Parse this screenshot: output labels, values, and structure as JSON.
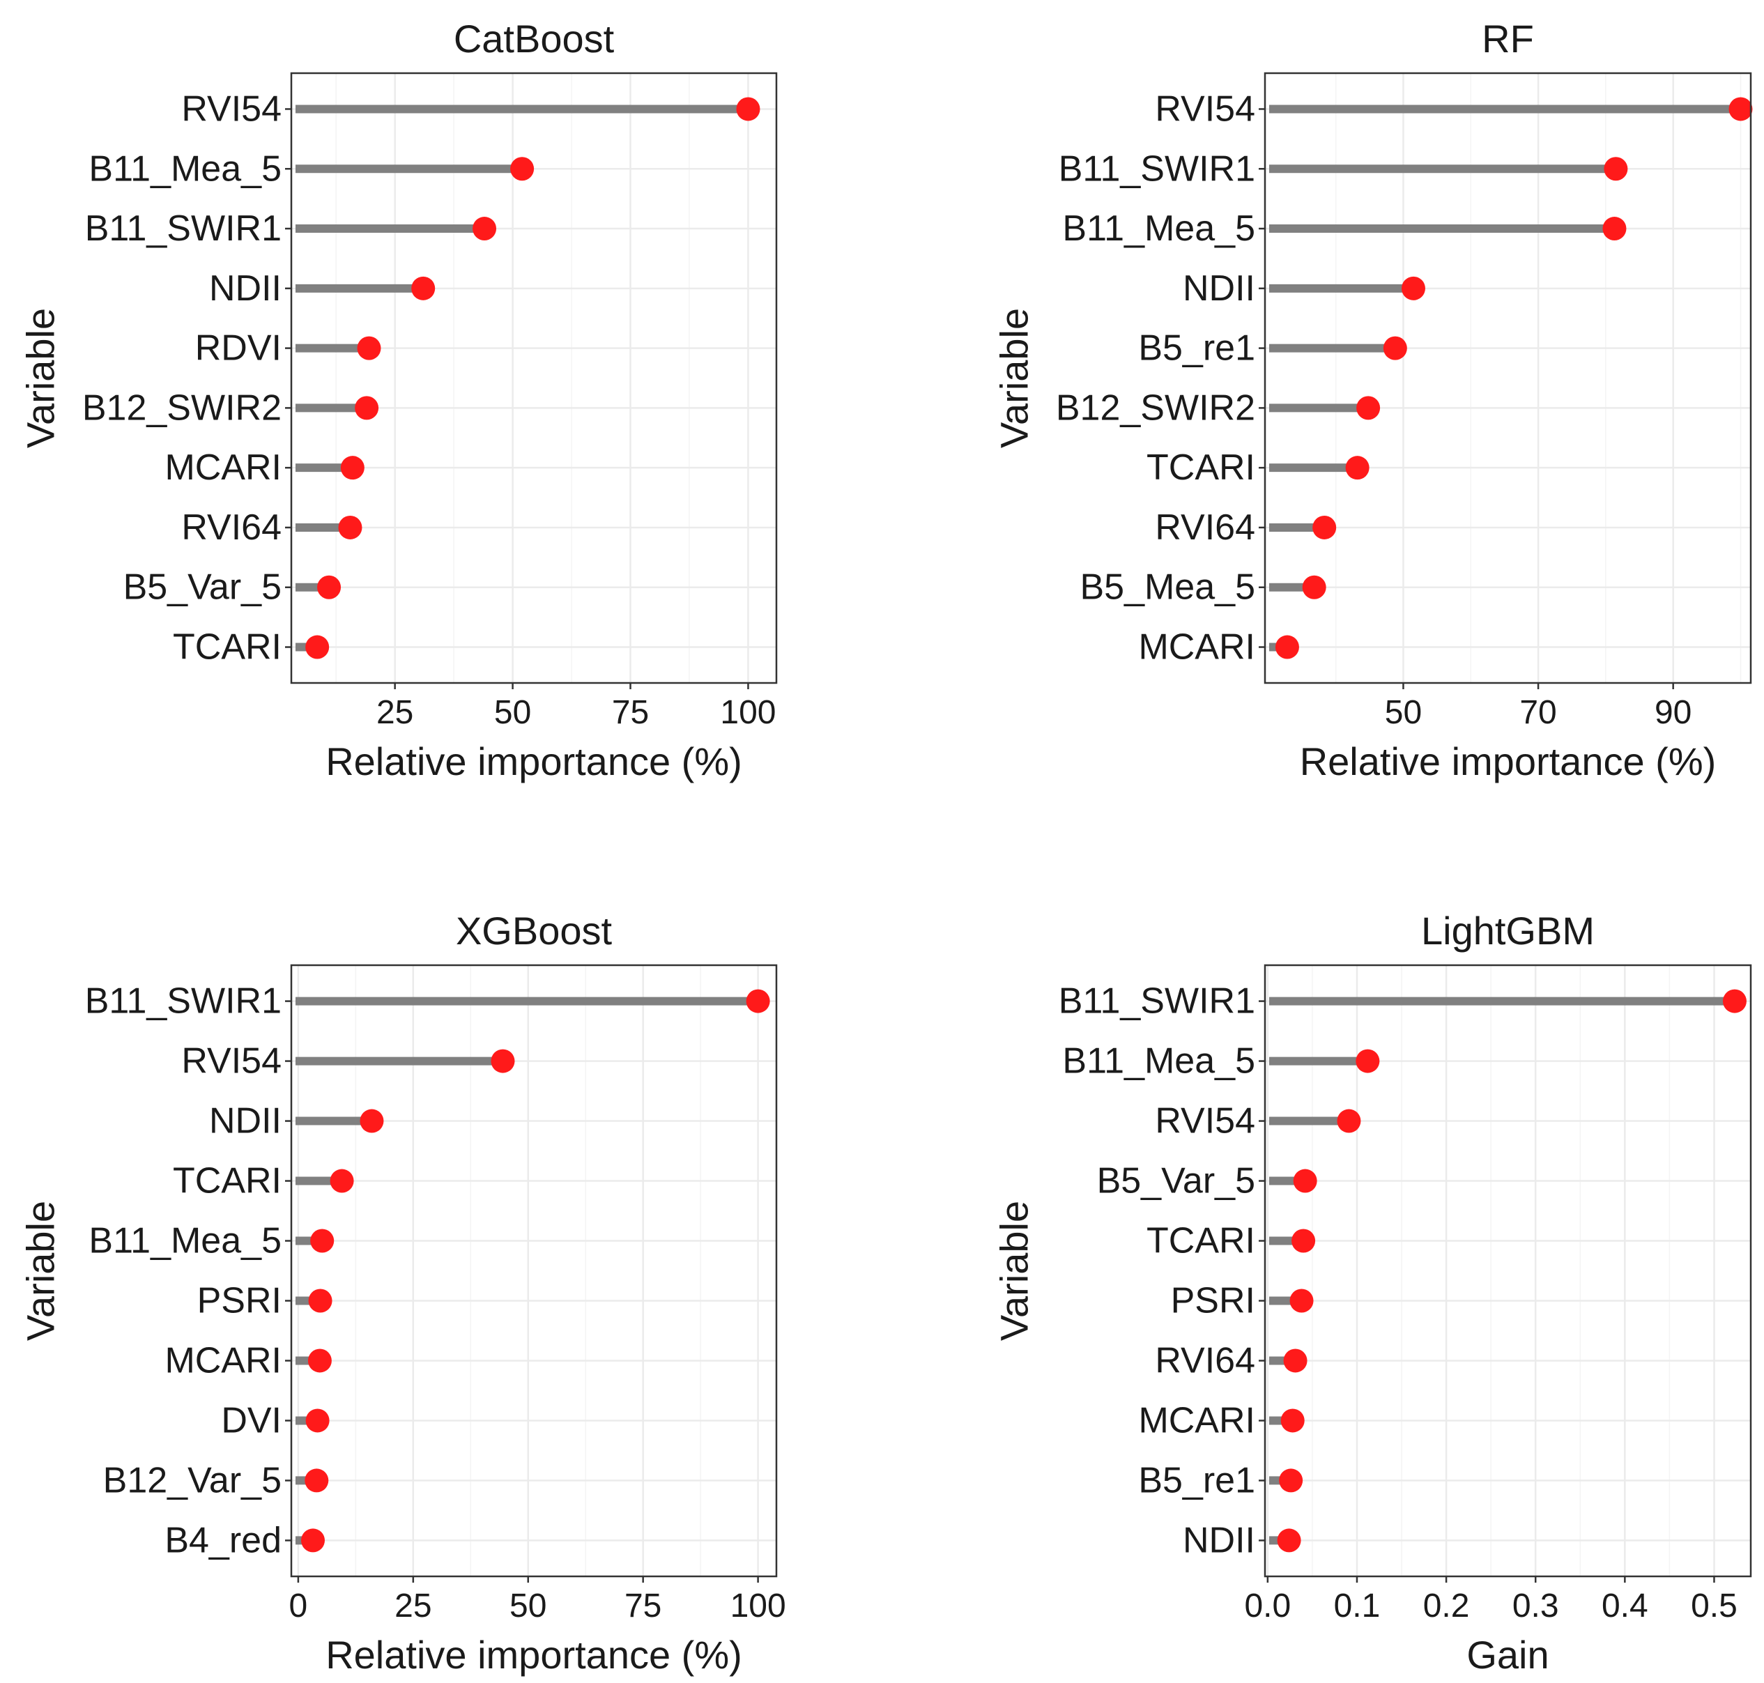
{
  "colors": {
    "stem": "#808080",
    "dot": "#ff1a1a"
  },
  "chart_data": [
    {
      "type": "lollipop",
      "title": "CatBoost",
      "xlabel": "Relative importance (%)",
      "ylabel": "Variable",
      "xlim": [
        3,
        106
      ],
      "ticks": [
        25,
        50,
        75,
        100
      ],
      "tick_labels": [
        "25",
        "50",
        "75",
        "100"
      ],
      "categories": [
        "RVI54",
        "B11_Mea_5",
        "B11_SWIR1",
        "NDII",
        "RDVI",
        "B12_SWIR2",
        "MCARI",
        "RVI64",
        "B5_Var_5",
        "TCARI"
      ],
      "values": [
        100,
        52,
        44,
        31,
        19.5,
        19,
        16,
        15.5,
        11,
        8.5
      ]
    },
    {
      "type": "lollipop",
      "title": "RF",
      "xlabel": "Relative importance (%)",
      "ylabel": "Variable",
      "xlim": [
        29.5,
        101.5
      ],
      "ticks": [
        50,
        70,
        90
      ],
      "tick_labels": [
        "50",
        "70",
        "90"
      ],
      "categories": [
        "RVI54",
        "B11_SWIR1",
        "B11_Mea_5",
        "NDII",
        "B5_re1",
        "B12_SWIR2",
        "TCARI",
        "RVI64",
        "B5_Mea_5",
        "MCARI"
      ],
      "values": [
        100,
        81.5,
        81.3,
        51.5,
        48.8,
        44.8,
        43.2,
        38.3,
        36.8,
        32.8
      ]
    },
    {
      "type": "lollipop",
      "title": "XGBoost",
      "xlabel": "Relative importance (%)",
      "ylabel": "Variable",
      "xlim": [
        -1.5,
        104
      ],
      "ticks": [
        0,
        25,
        50,
        75,
        100
      ],
      "tick_labels": [
        "0",
        "25",
        "50",
        "75",
        "100"
      ],
      "categories": [
        "B11_SWIR1",
        "RVI54",
        "NDII",
        "TCARI",
        "B11_Mea_5",
        "PSRI",
        "MCARI",
        "DVI",
        "B12_Var_5",
        "B4_red"
      ],
      "values": [
        100,
        44.5,
        16,
        9.5,
        5.2,
        4.8,
        4.7,
        4.2,
        4.0,
        3.2
      ]
    },
    {
      "type": "lollipop",
      "title": "LightGBM",
      "xlabel": "Gain",
      "ylabel": "Variable",
      "xlim": [
        -0.003,
        0.541
      ],
      "ticks": [
        0.0,
        0.1,
        0.2,
        0.3,
        0.4,
        0.5
      ],
      "tick_labels": [
        "0.0",
        "0.1",
        "0.2",
        "0.3",
        "0.4",
        "0.5"
      ],
      "categories": [
        "B11_SWIR1",
        "B11_Mea_5",
        "RVI54",
        "B5_Var_5",
        "TCARI",
        "PSRI",
        "RVI64",
        "MCARI",
        "B5_re1",
        "NDII"
      ],
      "values": [
        0.523,
        0.112,
        0.091,
        0.042,
        0.04,
        0.038,
        0.031,
        0.028,
        0.026,
        0.024
      ]
    }
  ]
}
